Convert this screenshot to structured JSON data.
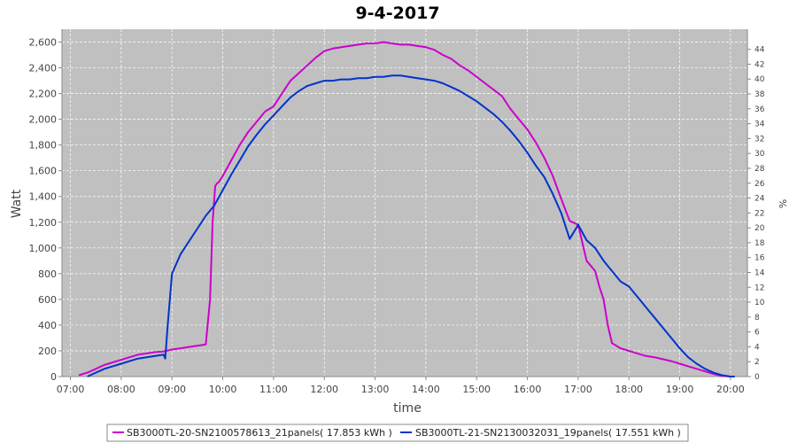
{
  "chart_data": {
    "type": "line",
    "title": "9-4-2017",
    "xlabel": "time",
    "ylabel": "Watt",
    "ylabel_right": "%",
    "x_ticks": [
      "07:00",
      "08:00",
      "09:00",
      "10:00",
      "11:00",
      "12:00",
      "13:00",
      "14:00",
      "15:00",
      "16:00",
      "17:00",
      "18:00",
      "19:00",
      "20:00"
    ],
    "xlim": [
      "06:50",
      "20:20"
    ],
    "ylim": [
      0,
      2700
    ],
    "y_ticks": [
      0,
      200,
      400,
      600,
      800,
      1000,
      1200,
      1400,
      1600,
      1800,
      2000,
      2200,
      2400,
      2600
    ],
    "y_tick_labels": [
      "0",
      "200",
      "400",
      "600",
      "800",
      "1,000",
      "1,200",
      "1,400",
      "1,600",
      "1,800",
      "2,000",
      "2,200",
      "2,400",
      "2,600"
    ],
    "y2lim": [
      0,
      46.7
    ],
    "y2_ticks": [
      "0",
      "2",
      "4",
      "6",
      "8",
      "10",
      "12",
      "14",
      "16",
      "18",
      "20",
      "22",
      "24",
      "26",
      "28",
      "30",
      "32",
      "34",
      "36",
      "38",
      "40",
      "42",
      "44"
    ],
    "grid": true,
    "legend_position": "bottom",
    "series": [
      {
        "name": "SB3000TL-20-SN2100578613_21panels( 17.853 kWh )",
        "color": "#cc00cc",
        "x": [
          "07:10",
          "07:20",
          "07:30",
          "07:40",
          "07:50",
          "08:00",
          "08:10",
          "08:20",
          "08:30",
          "08:40",
          "08:50",
          "09:00",
          "09:10",
          "09:20",
          "09:30",
          "09:40",
          "09:45",
          "09:48",
          "09:51",
          "09:53",
          "09:55",
          "10:00",
          "10:10",
          "10:20",
          "10:30",
          "10:40",
          "10:50",
          "11:00",
          "11:10",
          "11:20",
          "11:30",
          "11:40",
          "11:50",
          "12:00",
          "12:10",
          "12:20",
          "12:30",
          "12:40",
          "12:50",
          "13:00",
          "13:10",
          "13:20",
          "13:30",
          "13:40",
          "13:50",
          "14:00",
          "14:10",
          "14:20",
          "14:30",
          "14:40",
          "14:50",
          "15:00",
          "15:10",
          "15:20",
          "15:30",
          "15:40",
          "15:50",
          "16:00",
          "16:10",
          "16:20",
          "16:30",
          "16:40",
          "16:50",
          "17:00",
          "17:10",
          "17:20",
          "17:25",
          "17:30",
          "17:35",
          "17:40",
          "17:45",
          "17:50",
          "17:55",
          "18:00",
          "18:10",
          "18:20",
          "18:30",
          "18:40",
          "18:50",
          "19:00",
          "19:10",
          "19:20",
          "19:30",
          "19:40",
          "19:50",
          "20:00",
          "20:05"
        ],
        "values": [
          10,
          30,
          60,
          90,
          110,
          130,
          150,
          170,
          180,
          190,
          195,
          210,
          220,
          230,
          240,
          250,
          600,
          1200,
          1480,
          1500,
          1510,
          1560,
          1680,
          1800,
          1900,
          1980,
          2060,
          2100,
          2200,
          2300,
          2360,
          2420,
          2480,
          2530,
          2550,
          2560,
          2570,
          2580,
          2590,
          2590,
          2600,
          2590,
          2580,
          2580,
          2570,
          2560,
          2540,
          2500,
          2470,
          2420,
          2380,
          2330,
          2280,
          2230,
          2180,
          2080,
          2000,
          1920,
          1820,
          1700,
          1560,
          1380,
          1210,
          1180,
          900,
          820,
          700,
          600,
          400,
          260,
          240,
          220,
          210,
          200,
          180,
          160,
          150,
          135,
          120,
          100,
          80,
          60,
          40,
          20,
          5,
          0,
          0
        ]
      },
      {
        "name": "SB3000TL-21-SN2130032031_19panels( 17.551 kWh )",
        "color": "#0033cc",
        "x": [
          "07:20",
          "07:30",
          "07:40",
          "07:50",
          "08:00",
          "08:10",
          "08:20",
          "08:30",
          "08:40",
          "08:50",
          "08:52",
          "08:55",
          "09:00",
          "09:10",
          "09:20",
          "09:30",
          "09:40",
          "09:50",
          "10:00",
          "10:10",
          "10:20",
          "10:30",
          "10:40",
          "10:50",
          "11:00",
          "11:10",
          "11:20",
          "11:30",
          "11:40",
          "11:50",
          "12:00",
          "12:10",
          "12:20",
          "12:30",
          "12:40",
          "12:50",
          "13:00",
          "13:10",
          "13:20",
          "13:30",
          "13:40",
          "13:50",
          "14:00",
          "14:10",
          "14:20",
          "14:30",
          "14:40",
          "14:50",
          "15:00",
          "15:10",
          "15:20",
          "15:30",
          "15:40",
          "15:50",
          "16:00",
          "16:10",
          "16:20",
          "16:30",
          "16:40",
          "16:50",
          "17:00",
          "17:10",
          "17:20",
          "17:25",
          "17:30",
          "17:35",
          "17:40",
          "17:45",
          "17:50",
          "18:00",
          "18:10",
          "18:20",
          "18:30",
          "18:40",
          "18:50",
          "19:00",
          "19:10",
          "19:20",
          "19:30",
          "19:40",
          "19:50",
          "20:00",
          "20:05"
        ],
        "values": [
          0,
          30,
          60,
          80,
          100,
          120,
          140,
          150,
          160,
          170,
          140,
          400,
          800,
          950,
          1050,
          1150,
          1250,
          1330,
          1450,
          1570,
          1680,
          1790,
          1880,
          1960,
          2030,
          2100,
          2170,
          2220,
          2260,
          2280,
          2300,
          2300,
          2310,
          2310,
          2320,
          2320,
          2330,
          2330,
          2340,
          2340,
          2330,
          2320,
          2310,
          2300,
          2280,
          2250,
          2220,
          2180,
          2140,
          2090,
          2040,
          1980,
          1910,
          1830,
          1740,
          1640,
          1550,
          1420,
          1270,
          1070,
          1180,
          1060,
          1000,
          950,
          900,
          860,
          820,
          780,
          740,
          700,
          620,
          540,
          460,
          380,
          300,
          220,
          150,
          100,
          60,
          30,
          10,
          0,
          0
        ]
      }
    ]
  }
}
